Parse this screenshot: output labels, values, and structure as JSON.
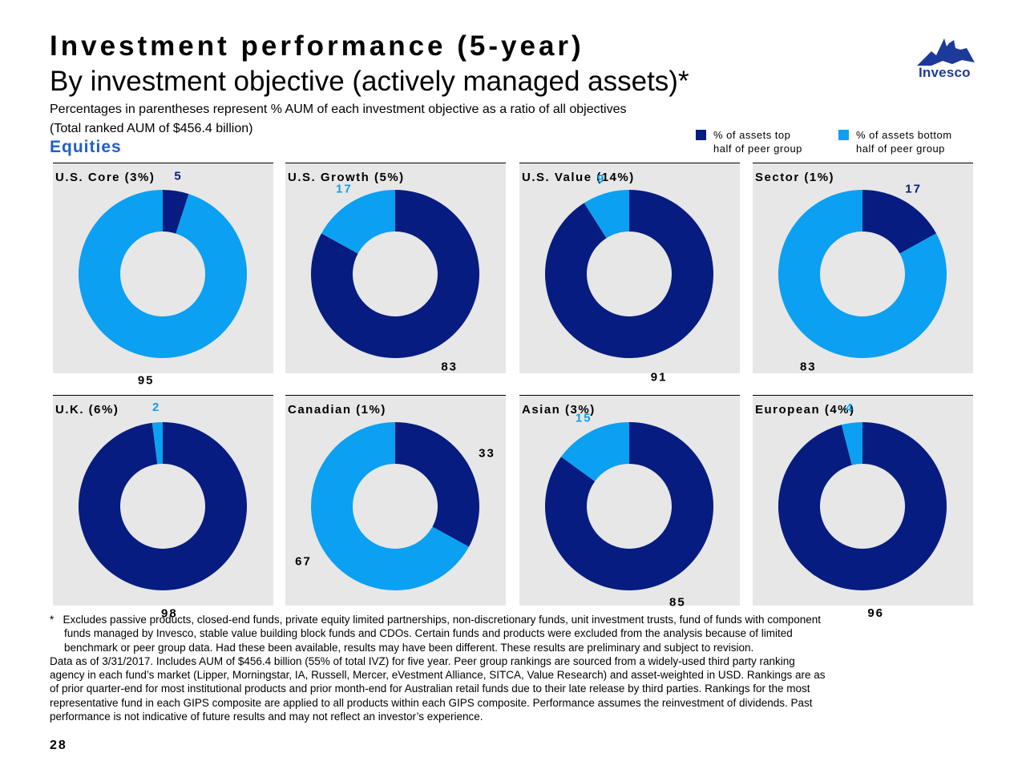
{
  "header": {
    "title": "Investment performance (5-year)",
    "subtitle": "By investment objective (actively managed assets)*",
    "note_line1": "Percentages in parentheses represent % AUM of each investment objective as a ratio of all objectives",
    "note_line2": "(Total ranked AUM of $456.4 billion)",
    "section": "Equities"
  },
  "logo": {
    "text": "Invesco"
  },
  "legend": {
    "top": {
      "line1": "% of assets top",
      "line2": "half of peer group",
      "color": "#061C80"
    },
    "bottom": {
      "line1": "% of assets bottom",
      "line2": "half of peer group",
      "color": "#0BA0F2"
    }
  },
  "colors": {
    "top": "#061C80",
    "bottom": "#0BA0F2",
    "panel_bg": "#E7E7E7"
  },
  "chart_data": [
    {
      "type": "pie",
      "donut": true,
      "title": "U.S. Core (3%)",
      "categories": [
        "% of assets top half of peer group",
        "% of assets bottom half of peer group"
      ],
      "values": [
        5,
        95
      ]
    },
    {
      "type": "pie",
      "donut": true,
      "title": "U.S. Growth (5%)",
      "categories": [
        "% of assets top half of peer group",
        "% of assets bottom half of peer group"
      ],
      "values": [
        83,
        17
      ]
    },
    {
      "type": "pie",
      "donut": true,
      "title": "U.S. Value (14%)",
      "categories": [
        "% of assets top half of peer group",
        "% of assets bottom half of peer group"
      ],
      "values": [
        91,
        9
      ]
    },
    {
      "type": "pie",
      "donut": true,
      "title": "Sector (1%)",
      "categories": [
        "% of assets top half of peer group",
        "% of assets bottom half of peer group"
      ],
      "values": [
        17,
        83
      ]
    },
    {
      "type": "pie",
      "donut": true,
      "title": "U.K. (6%)",
      "categories": [
        "% of assets top half of peer group",
        "% of assets bottom half of peer group"
      ],
      "values": [
        98,
        2
      ]
    },
    {
      "type": "pie",
      "donut": true,
      "title": "Canadian (1%)",
      "categories": [
        "% of assets top half of peer group",
        "% of assets bottom half of peer group"
      ],
      "values": [
        33,
        67
      ]
    },
    {
      "type": "pie",
      "donut": true,
      "title": "Asian (3%)",
      "categories": [
        "% of assets top half of peer group",
        "% of assets bottom half of peer group"
      ],
      "values": [
        85,
        15
      ]
    },
    {
      "type": "pie",
      "donut": true,
      "title": "European (4%)",
      "categories": [
        "% of assets top half of peer group",
        "% of assets bottom half of peer group"
      ],
      "values": [
        96,
        4
      ]
    }
  ],
  "footnote": {
    "line1": "Excludes passive products, closed-end funds, private equity limited partnerships, non-discretionary funds, unit investment trusts, fund of funds with component",
    "line2": "funds managed by Invesco, stable value building block funds and CDOs. Certain funds and products were excluded from the analysis because of limited",
    "line3": "benchmark or peer group data. Had these been available, results may have been different. These results are preliminary and subject to revision.",
    "line4": "Data as of 3/31/2017. Includes AUM of $456.4 billion (55% of total IVZ) for five year. Peer group rankings are sourced from a widely-used third party ranking",
    "line5": "agency in each fund’s market (Lipper, Morningstar, IA, Russell, Mercer, eVestment Alliance, SITCA, Value Research) and asset-weighted in USD. Rankings are as",
    "line6": "of prior quarter-end for most institutional products and prior month-end for Australian retail funds due to their late release by third parties. Rankings for the most",
    "line7": "representative fund in each GIPS composite are applied to all products within each GIPS composite. Performance assumes the reinvestment of dividends. Past",
    "line8": "performance is not indicative of future results and may not reflect an investor’s experience.",
    "marker": "*"
  },
  "page_number": "28"
}
